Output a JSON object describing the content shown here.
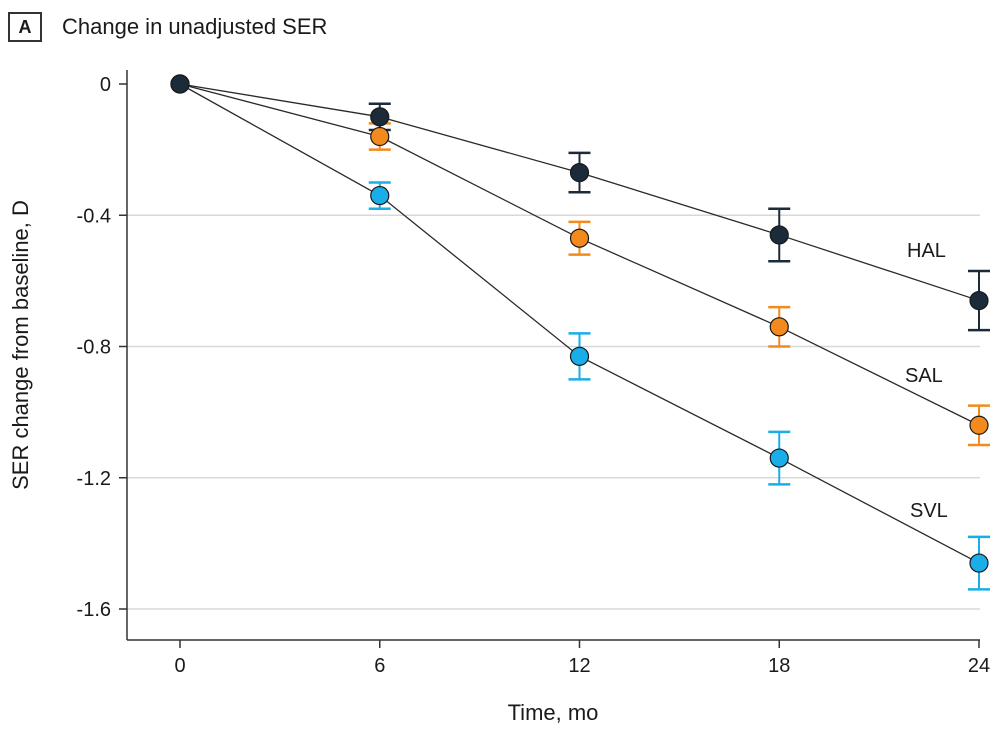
{
  "panel_label": "A",
  "chart_data": {
    "type": "line",
    "title": "Change in unadjusted SER",
    "xlabel": "Time, mo",
    "ylabel": "SER change from baseline, D",
    "x": [
      0,
      6,
      12,
      18,
      24
    ],
    "xlim": [
      -1.5,
      24.5
    ],
    "ylim": [
      -1.7,
      0.05
    ],
    "xticks": [
      0,
      6,
      12,
      18,
      24
    ],
    "yticks": [
      0,
      -0.4,
      -0.8,
      -1.2,
      -1.6
    ],
    "ytick_labels": [
      "0",
      "-0.4",
      "-0.8",
      "-1.2",
      "-1.6"
    ],
    "grid": "horizontal",
    "series": [
      {
        "name": "SVL",
        "color": "#1aaee8",
        "values": [
          0,
          -0.34,
          -0.83,
          -1.14,
          -1.46
        ],
        "err_low": [
          0,
          -0.38,
          -0.9,
          -1.22,
          -1.54
        ],
        "err_high": [
          0,
          -0.3,
          -0.76,
          -1.06,
          -1.38
        ]
      },
      {
        "name": "SAL",
        "color": "#f28a1e",
        "values": [
          0,
          -0.16,
          -0.47,
          -0.74,
          -1.04
        ],
        "err_low": [
          0,
          -0.2,
          -0.52,
          -0.8,
          -1.1
        ],
        "err_high": [
          0,
          -0.12,
          -0.42,
          -0.68,
          -0.98
        ]
      },
      {
        "name": "HAL",
        "color": "#1b2b3a",
        "values": [
          0,
          -0.1,
          -0.27,
          -0.46,
          -0.66
        ],
        "err_low": [
          0,
          -0.14,
          -0.33,
          -0.54,
          -0.75
        ],
        "err_high": [
          0,
          -0.06,
          -0.21,
          -0.38,
          -0.57
        ]
      }
    ]
  }
}
